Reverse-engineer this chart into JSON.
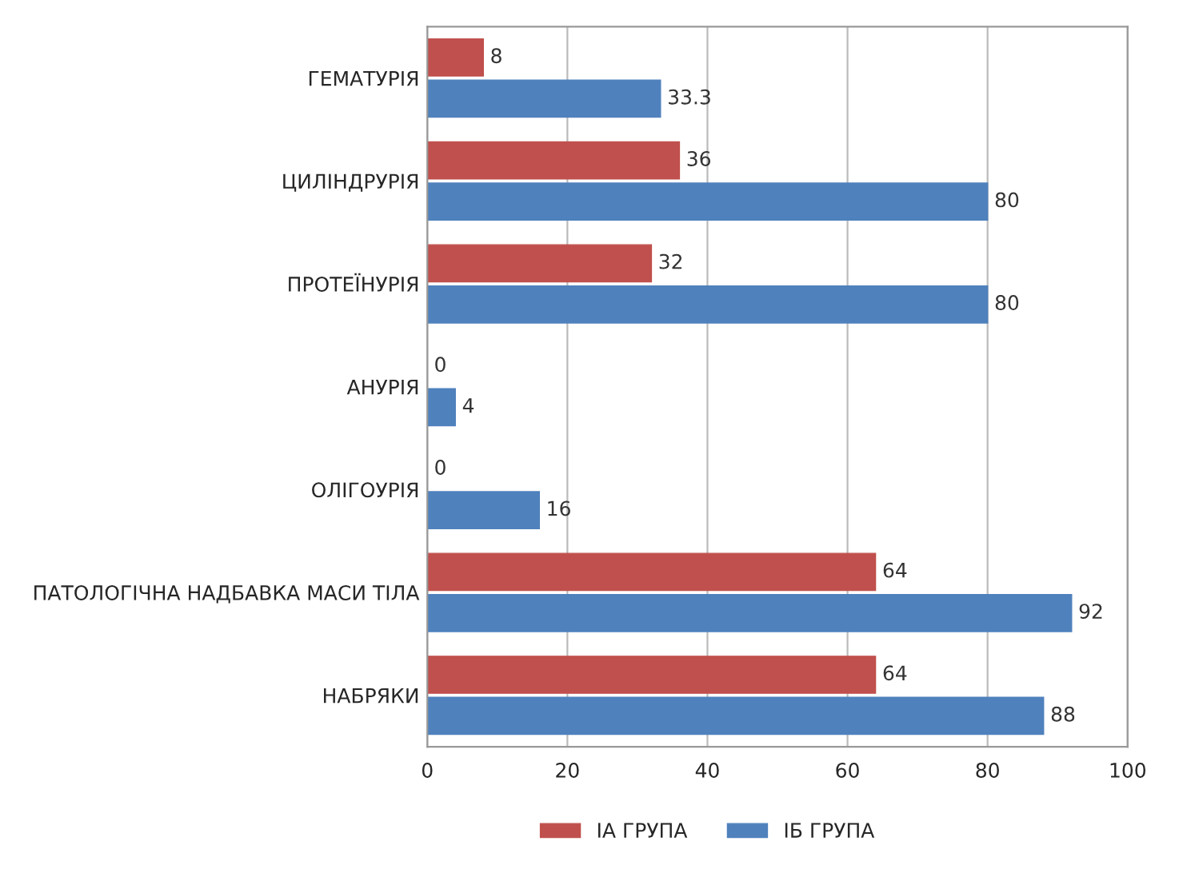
{
  "chart_data": {
    "type": "bar",
    "orientation": "horizontal",
    "categories": [
      "ГЕМАТУРІЯ",
      "ЦИЛІНДРУРІЯ",
      "ПРОТЕЇНУРІЯ",
      "АНУРІЯ",
      "ОЛІГОУРІЯ",
      "ПАТОЛОГІЧНА НАДБАВКА МАСИ ТІЛА",
      "НАБРЯКИ"
    ],
    "series": [
      {
        "name": "ІА ГРУПА",
        "color": "#c0504d",
        "values": [
          8,
          36,
          32,
          0,
          0,
          64,
          64
        ]
      },
      {
        "name": "ІБ ГРУПА",
        "color": "#4f81bd",
        "values": [
          33.3,
          80,
          80,
          4,
          16,
          92,
          88
        ]
      }
    ],
    "xlim": [
      0,
      100
    ],
    "xticks": [
      0,
      20,
      40,
      60,
      80,
      100
    ],
    "grid": "x",
    "legend": "bottom",
    "data_labels": true
  }
}
